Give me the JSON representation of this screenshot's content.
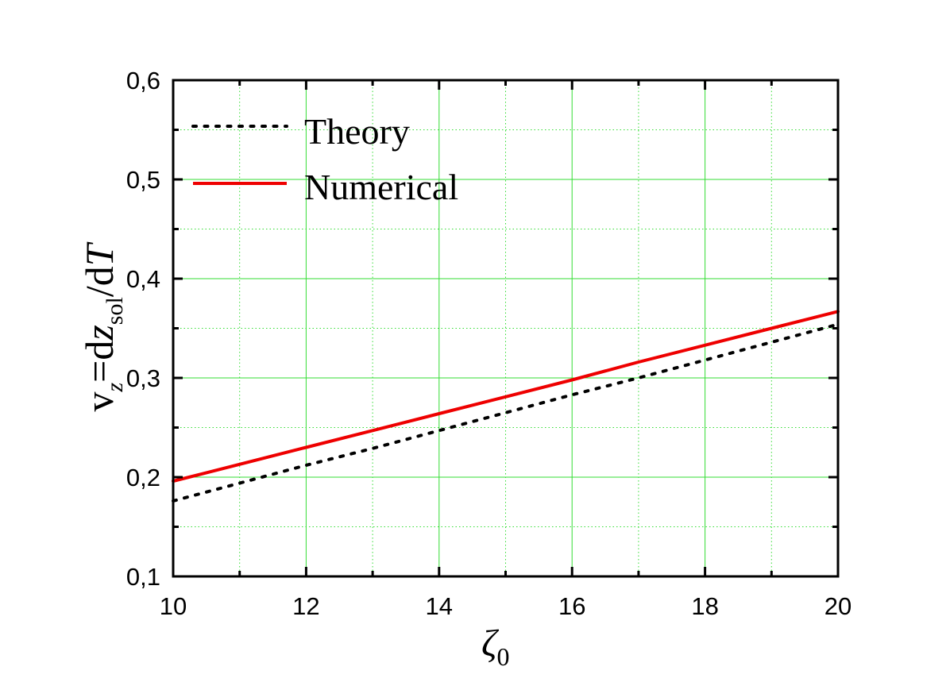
{
  "chart_data": {
    "type": "line",
    "xlabel": {
      "symbol": "ζ",
      "subscript": "0"
    },
    "ylabel": {
      "v": "v",
      "v_sub": "z",
      "equals_d": "=d",
      "z": "z",
      "z_sub": "sol",
      "slash_d": "/d",
      "T": "T"
    },
    "xlim": [
      10,
      20
    ],
    "ylim": [
      0.1,
      0.6
    ],
    "x_ticks": [
      10,
      12,
      14,
      16,
      18,
      20
    ],
    "x_tick_labels": [
      "10",
      "12",
      "14",
      "16",
      "18",
      "20"
    ],
    "y_ticks": [
      0.1,
      0.2,
      0.3,
      0.4,
      0.5,
      0.6
    ],
    "y_tick_labels": [
      "0,1",
      "0,2",
      "0,3",
      "0,4",
      "0,5",
      "0,6"
    ],
    "grid": true,
    "grid_color": "#33dd33",
    "legend_position": "top-left",
    "series": [
      {
        "name": "Theory",
        "style": "dotted",
        "color": "#000000",
        "x": [
          10,
          11,
          12,
          13,
          14,
          15,
          16,
          17,
          18,
          19,
          20
        ],
        "y": [
          0.176,
          0.194,
          0.212,
          0.229,
          0.247,
          0.265,
          0.283,
          0.3,
          0.318,
          0.336,
          0.354
        ]
      },
      {
        "name": "Numerical",
        "style": "solid",
        "color": "#ee0000",
        "x": [
          10,
          11,
          12,
          13,
          14,
          15,
          16,
          17,
          18,
          19,
          20
        ],
        "y": [
          0.196,
          0.213,
          0.23,
          0.247,
          0.264,
          0.281,
          0.298,
          0.316,
          0.333,
          0.35,
          0.367
        ]
      }
    ]
  }
}
